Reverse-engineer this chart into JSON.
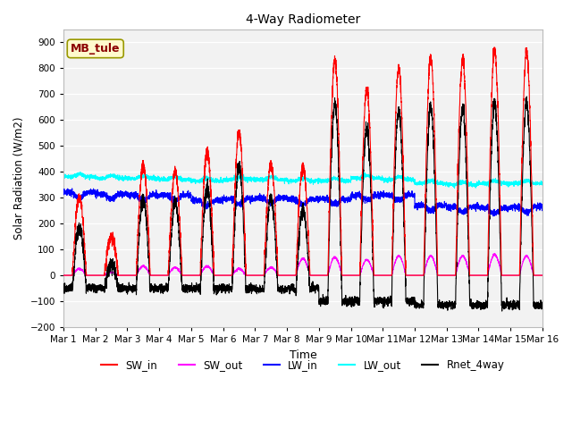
{
  "title": "4-Way Radiometer",
  "xlabel": "Time",
  "ylabel": "Solar Radiation (W/m2)",
  "ylim": [
    -200,
    950
  ],
  "yticks": [
    -200,
    -100,
    0,
    100,
    200,
    300,
    400,
    500,
    600,
    700,
    800,
    900
  ],
  "x_labels": [
    "Mar 1",
    "Mar 2",
    "Mar 3",
    "Mar 4",
    "Mar 5",
    "Mar 6",
    "Mar 7",
    "Mar 8",
    "Mar 9",
    "Mar 10",
    "Mar 11",
    "Mar 12",
    "Mar 13",
    "Mar 14",
    "Mar 15",
    "Mar 16"
  ],
  "station_label": "MB_tule",
  "station_label_color": "#8B0000",
  "station_box_color": "#FFFACD",
  "legend_entries": [
    {
      "label": "SW_in",
      "color": "#FF0000",
      "linestyle": "-"
    },
    {
      "label": "SW_out",
      "color": "#FF00FF",
      "linestyle": "-"
    },
    {
      "label": "LW_in",
      "color": "#0000FF",
      "linestyle": "-"
    },
    {
      "label": "LW_out",
      "color": "#00FFFF",
      "linestyle": "-"
    },
    {
      "label": "Rnet_4way",
      "color": "#000000",
      "linestyle": "-"
    }
  ],
  "bg_color": "#FFFFFF",
  "plot_bg_color": "#F2F2F2",
  "n_days": 15,
  "points_per_day": 288,
  "sw_in_peaks": [
    300,
    150,
    430,
    400,
    480,
    550,
    430,
    420,
    830,
    720,
    800,
    840,
    840,
    870,
    865
  ],
  "sw_out_peaks": [
    25,
    12,
    35,
    30,
    35,
    25,
    30,
    65,
    70,
    60,
    75,
    75,
    75,
    80,
    75
  ],
  "lw_in_base": [
    320,
    315,
    310,
    310,
    290,
    295,
    300,
    295,
    295,
    310,
    310,
    270,
    265,
    260,
    265
  ],
  "lw_out_base": [
    380,
    375,
    375,
    370,
    365,
    370,
    370,
    365,
    365,
    375,
    370,
    355,
    350,
    355,
    355
  ],
  "rnet_night": [
    -50,
    -50,
    -50,
    -50,
    -50,
    -50,
    -55,
    -50,
    -100,
    -100,
    -100,
    -115,
    -115,
    -115,
    -115
  ]
}
